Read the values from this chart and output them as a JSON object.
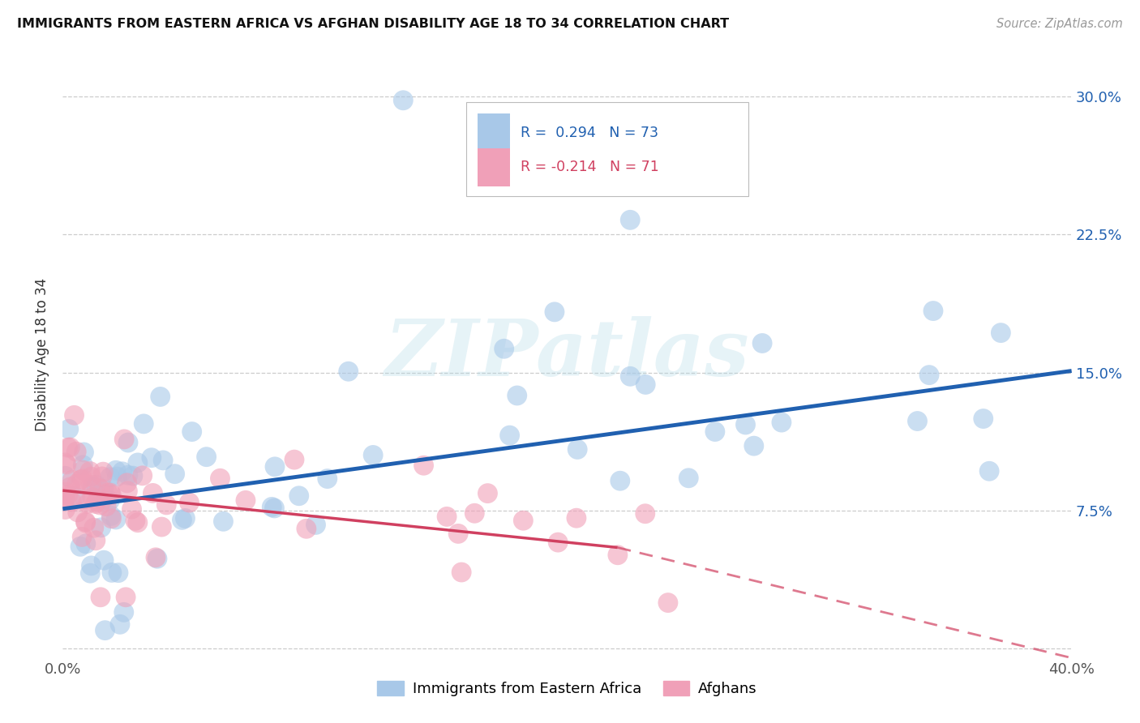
{
  "title": "IMMIGRANTS FROM EASTERN AFRICA VS AFGHAN DISABILITY AGE 18 TO 34 CORRELATION CHART",
  "source": "Source: ZipAtlas.com",
  "ylabel": "Disability Age 18 to 34",
  "xlim": [
    0.0,
    0.4
  ],
  "ylim": [
    -0.005,
    0.325
  ],
  "x_ticks": [
    0.0,
    0.1,
    0.2,
    0.3,
    0.4
  ],
  "y_ticks": [
    0.0,
    0.075,
    0.15,
    0.225,
    0.3
  ],
  "x_tick_labels": [
    "0.0%",
    "",
    "",
    "",
    "40.0%"
  ],
  "y_tick_labels_left": [
    "",
    "",
    "",
    "",
    ""
  ],
  "y_tick_labels_right": [
    "",
    "7.5%",
    "15.0%",
    "22.5%",
    "30.0%"
  ],
  "blue_R": 0.294,
  "blue_N": 73,
  "pink_R": -0.214,
  "pink_N": 71,
  "blue_color": "#a8c8e8",
  "pink_color": "#f0a0b8",
  "blue_line_color": "#2060b0",
  "pink_line_color": "#d04060",
  "watermark": "ZIPatlas",
  "legend_label_blue": "Immigrants from Eastern Africa",
  "legend_label_pink": "Afghans",
  "background_color": "#ffffff",
  "grid_color": "#cccccc",
  "blue_line_start_y": 0.076,
  "blue_line_end_y": 0.151,
  "pink_line_start_y": 0.086,
  "pink_line_solid_end_x": 0.22,
  "pink_line_solid_end_y": 0.055,
  "pink_line_dash_end_x": 0.4,
  "pink_line_dash_end_y": -0.005
}
